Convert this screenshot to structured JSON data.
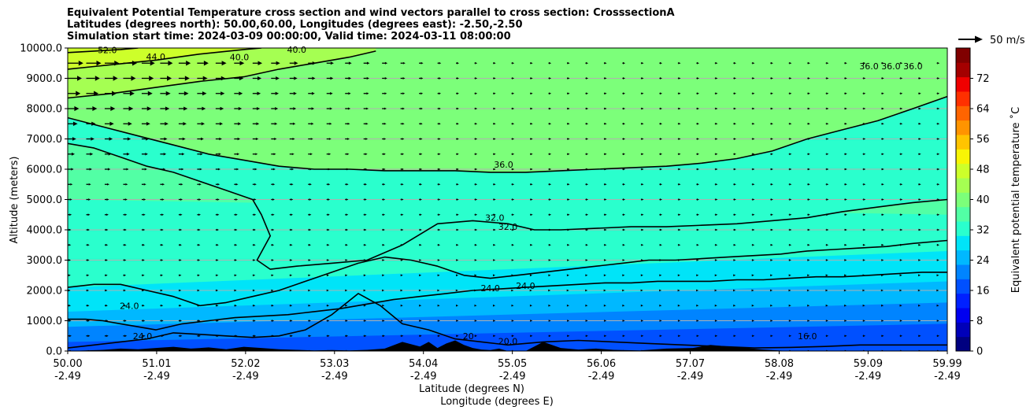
{
  "title": {
    "line1": "Equivalent Potential Temperature cross section and wind vectors parallel to cross section: CrosssectionA",
    "line2": "Latitudes (degrees north): 50.00,60.00, Longitudes (degrees east): -2.50,-2.50",
    "line3": "Simulation start time: 2024-03-09 00:00:00, Valid time: 2024-03-11 08:00:00"
  },
  "colors": {
    "colormap": [
      "#000080",
      "#0000b8",
      "#0000f0",
      "#0020ff",
      "#0050ff",
      "#0084ff",
      "#00b8ff",
      "#00e4f8",
      "#2affcd",
      "#52ffa5",
      "#7cff7a",
      "#a5ff52",
      "#cdff2a",
      "#f8f505",
      "#ffc400",
      "#ff9400",
      "#ff6400",
      "#ff3000",
      "#f00000",
      "#a40000",
      "#800000"
    ],
    "contour": "#000000",
    "arrow": "#000000",
    "grid": "#b0b0b0",
    "terrain": "#000000"
  },
  "chart_data": {
    "type": "heatmap",
    "title": "Equivalent Potential Temperature cross section and wind vectors parallel to cross section: CrosssectionA",
    "xlabel": "Latitude (degrees N)",
    "xlabel2": "Longitude (degrees E)",
    "ylabel": "Altitude (meters)",
    "ylim": [
      0,
      10000
    ],
    "xlim": [
      50.0,
      59.99
    ],
    "yticks": [
      "0.0",
      "1000.0",
      "2000.0",
      "3000.0",
      "4000.0",
      "5000.0",
      "6000.0",
      "7000.0",
      "8000.0",
      "9000.0",
      "10000.0"
    ],
    "ytick_values": [
      0,
      1000,
      2000,
      3000,
      4000,
      5000,
      6000,
      7000,
      8000,
      9000,
      10000
    ],
    "xtick_values": [
      50.0,
      51.01,
      52.02,
      53.03,
      54.04,
      55.05,
      56.06,
      57.07,
      58.08,
      59.09,
      59.99
    ],
    "xtick_lat": [
      "50.00",
      "51.01",
      "52.02",
      "53.03",
      "54.04",
      "55.05",
      "56.06",
      "57.07",
      "58.08",
      "59.09",
      "59.99"
    ],
    "xtick_lon": [
      "-2.49",
      "-2.49",
      "-2.49",
      "-2.49",
      "-2.49",
      "-2.49",
      "-2.49",
      "-2.49",
      "-2.49",
      "-2.49",
      "-2.49"
    ],
    "grid": "horizontal",
    "colorbar": {
      "label": "Equivalent potential temperature ˚C",
      "min": 0,
      "max": 80,
      "ticks": [
        "0",
        "8",
        "16",
        "24",
        "32",
        "40",
        "48",
        "56",
        "64",
        "72"
      ],
      "tick_values": [
        0,
        8,
        16,
        24,
        32,
        40,
        48,
        56,
        64,
        72
      ]
    },
    "quiver_key": {
      "label": "50 m/s",
      "value": 50
    },
    "contour_levels": [
      16,
      20,
      24,
      28,
      32,
      36,
      40,
      44,
      52
    ],
    "contours": [
      {
        "level": 20,
        "x": [
          50.0,
          50.3,
          50.6,
          50.9,
          51.2,
          51.5,
          51.8,
          52.1,
          52.4,
          52.7,
          53.0,
          53.3,
          53.55,
          53.8,
          54.1,
          54.4,
          54.7,
          55.0,
          55.4,
          55.8,
          56.2,
          56.6,
          57.0,
          57.4,
          57.8,
          58.2,
          58.6,
          59.0,
          59.4,
          59.8,
          59.99
        ],
        "y": [
          100,
          200,
          300,
          400,
          600,
          550,
          500,
          450,
          500,
          700,
          1200,
          1900,
          1500,
          900,
          700,
          400,
          300,
          200,
          300,
          350,
          300,
          250,
          200,
          150,
          100,
          120,
          150,
          200,
          200,
          200,
          200
        ]
      },
      {
        "level": 24,
        "x": [
          50.0,
          50.2,
          50.4,
          50.6,
          50.8,
          51.0,
          51.3,
          51.6,
          51.9,
          52.2,
          52.5,
          52.8,
          53.1,
          53.4,
          53.7,
          54.0,
          54.3,
          54.6,
          54.9,
          55.2,
          55.5,
          55.8,
          56.1,
          56.4,
          56.7,
          57.0,
          57.3,
          57.6,
          57.9,
          58.2,
          58.5,
          58.8,
          59.1,
          59.4,
          59.7,
          59.99
        ],
        "y": [
          1050,
          1050,
          1000,
          900,
          800,
          700,
          900,
          1000,
          1100,
          1150,
          1200,
          1300,
          1400,
          1550,
          1700,
          1800,
          1900,
          2000,
          2050,
          2100,
          2150,
          2200,
          2250,
          2250,
          2300,
          2300,
          2300,
          2350,
          2350,
          2400,
          2450,
          2450,
          2500,
          2550,
          2600,
          2600
        ]
      },
      {
        "level": 28,
        "x": [
          50.0,
          50.3,
          50.6,
          50.9,
          51.2,
          51.5,
          51.8,
          52.1,
          52.4,
          52.7,
          53.0,
          53.3,
          53.6,
          53.9,
          54.2,
          54.5,
          54.8,
          55.1,
          55.4,
          55.7,
          56.0,
          56.3,
          56.6,
          56.9,
          57.2,
          57.5,
          57.8,
          58.1,
          58.4,
          58.7,
          59.0,
          59.3,
          59.6,
          59.99
        ],
        "y": [
          2100,
          2200,
          2200,
          2000,
          1800,
          1500,
          1600,
          1800,
          2000,
          2300,
          2600,
          2900,
          3100,
          3000,
          2800,
          2500,
          2400,
          2500,
          2600,
          2700,
          2800,
          2900,
          3000,
          3000,
          3050,
          3100,
          3150,
          3200,
          3300,
          3350,
          3400,
          3450,
          3550,
          3650
        ]
      },
      {
        "level": 32,
        "x": [
          50.0,
          50.3,
          50.6,
          50.9,
          51.2,
          51.5,
          51.8,
          52.1,
          52.2,
          52.3,
          52.15,
          52.3,
          52.6,
          53.0,
          53.4,
          53.8,
          54.2,
          54.6,
          55.0,
          55.3,
          55.6,
          56.0,
          56.4,
          56.8,
          57.2,
          57.6,
          58.0,
          58.4,
          58.8,
          59.2,
          59.6,
          59.99
        ],
        "y": [
          6850,
          6700,
          6400,
          6100,
          5900,
          5600,
          5300,
          5000,
          4500,
          3800,
          3000,
          2700,
          2800,
          2900,
          3000,
          3500,
          4200,
          4300,
          4200,
          4000,
          4000,
          4050,
          4100,
          4100,
          4150,
          4200,
          4300,
          4400,
          4600,
          4750,
          4900,
          5000
        ]
      },
      {
        "level": 36,
        "x": [
          50.0,
          50.4,
          50.8,
          51.2,
          51.6,
          52.0,
          52.4,
          52.8,
          53.2,
          53.6,
          54.0,
          54.4,
          54.8,
          55.2,
          55.6,
          56.0,
          56.4,
          56.8,
          57.2,
          57.6,
          58.0,
          58.4,
          58.8,
          59.2,
          59.6,
          59.99
        ],
        "y": [
          7700,
          7400,
          7100,
          6800,
          6500,
          6300,
          6100,
          6000,
          6000,
          5950,
          5950,
          5950,
          5900,
          5900,
          5950,
          6000,
          6050,
          6100,
          6200,
          6350,
          6600,
          7000,
          7300,
          7600,
          8000,
          8400
        ]
      },
      {
        "level": 40,
        "x": [
          50.0,
          50.5,
          51.0,
          51.5,
          52.0,
          52.4,
          52.8,
          53.2,
          53.5
        ],
        "y": [
          8350,
          8500,
          8700,
          8900,
          9050,
          9300,
          9500,
          9700,
          9900
        ]
      },
      {
        "level": 44,
        "x": [
          50.0,
          50.5,
          51.0,
          51.5,
          52.0,
          52.2
        ],
        "y": [
          9300,
          9450,
          9600,
          9800,
          9950,
          10000
        ]
      },
      {
        "level": 52,
        "x": [
          50.0,
          50.3,
          50.6,
          50.8
        ],
        "y": [
          9850,
          9900,
          9950,
          10000
        ]
      }
    ],
    "contour_labels": [
      {
        "text": "52.0",
        "x": 50.45,
        "y": 9930
      },
      {
        "text": "44.0",
        "x": 51.0,
        "y": 9720
      },
      {
        "text": "40.0",
        "x": 51.95,
        "y": 9700
      },
      {
        "text": "40.0",
        "x": 52.6,
        "y": 9950
      },
      {
        "text": "36.0",
        "x": 54.95,
        "y": 6150
      },
      {
        "text": "32.0",
        "x": 54.85,
        "y": 4400
      },
      {
        "text": "32.0",
        "x": 55.0,
        "y": 4100
      },
      {
        "text": "24.0",
        "x": 54.8,
        "y": 2080
      },
      {
        "text": "24.0",
        "x": 55.2,
        "y": 2150
      },
      {
        "text": "24.0",
        "x": 50.7,
        "y": 1500
      },
      {
        "text": "24.0",
        "x": 50.85,
        "y": 500
      },
      {
        "text": "20",
        "x": 54.55,
        "y": 500
      },
      {
        "text": "20.0",
        "x": 55.0,
        "y": 320
      },
      {
        "text": "16.0",
        "x": 58.4,
        "y": 500
      },
      {
        "text": "36.0",
        "x": 59.1,
        "y": 9400
      },
      {
        "text": "36.0",
        "x": 59.35,
        "y": 9400
      },
      {
        "text": "36.0",
        "x": 59.6,
        "y": 9400
      }
    ],
    "theta_e_bands": [
      {
        "value": 14,
        "x": [
          50.0,
          59.99
        ],
        "y_top_at_x": [
          300,
          900
        ]
      },
      {
        "value": 18,
        "x": [
          50.0,
          59.99
        ],
        "y_top_at_x": [
          800,
          1600
        ]
      },
      {
        "value": 22,
        "x": [
          50.0,
          59.99
        ],
        "y_top_at_x": [
          1300,
          2300
        ]
      },
      {
        "value": 26,
        "x": [
          50.0,
          59.99
        ],
        "y_top_at_x": [
          2100,
          3300
        ]
      },
      {
        "value": 30,
        "x": [
          50.0,
          59.99
        ],
        "y_top_at_x": [
          5000,
          4500
        ]
      },
      {
        "value": 34,
        "x": [
          50.0,
          59.99
        ],
        "y_top_at_x": [
          7600,
          6800
        ]
      },
      {
        "value": 38,
        "x": [
          50.0,
          59.99
        ],
        "y_top_at_x": [
          8500,
          10000
        ]
      }
    ],
    "terrain": {
      "x": [
        50.0,
        50.2,
        50.4,
        50.6,
        50.8,
        51.0,
        51.2,
        51.4,
        51.6,
        51.8,
        52.0,
        52.2,
        52.4,
        52.6,
        52.8,
        53.0,
        53.2,
        53.4,
        53.6,
        53.8,
        54.0,
        54.1,
        54.2,
        54.3,
        54.4,
        54.5,
        54.6,
        54.7,
        54.8,
        54.9,
        55.0,
        55.1,
        55.2,
        55.3,
        55.4,
        55.6,
        55.8,
        56.0,
        56.2,
        56.5,
        56.8,
        57.1,
        57.3,
        57.5,
        57.7,
        57.9,
        58.2,
        59.0,
        59.99
      ],
      "y": [
        0,
        20,
        40,
        80,
        60,
        100,
        140,
        80,
        120,
        60,
        140,
        100,
        60,
        40,
        20,
        30,
        20,
        40,
        80,
        300,
        150,
        300,
        100,
        250,
        350,
        200,
        100,
        50,
        30,
        80,
        0,
        0,
        0,
        150,
        300,
        100,
        50,
        80,
        40,
        20,
        80,
        100,
        200,
        150,
        100,
        50,
        0,
        0,
        0
      ]
    },
    "wind_grid": {
      "x_start": 50.0,
      "x_step": 0.21,
      "y_levels": [
        0,
        500,
        1000,
        1500,
        2000,
        2500,
        3000,
        3500,
        4000,
        4500,
        5000,
        5500,
        6000,
        6500,
        7000,
        7500,
        8000,
        8500,
        9000,
        9500
      ]
    },
    "wind_u_profile": {
      "altitudes": [
        0,
        2000,
        4000,
        5500,
        6500,
        7500,
        8500,
        9500
      ],
      "u_west_edge": [
        6,
        4,
        5,
        7,
        10,
        14,
        18,
        22
      ],
      "u_east_edge": [
        4,
        3,
        4,
        4,
        4,
        4,
        4,
        4
      ],
      "decay_lat": 54.5
    }
  }
}
